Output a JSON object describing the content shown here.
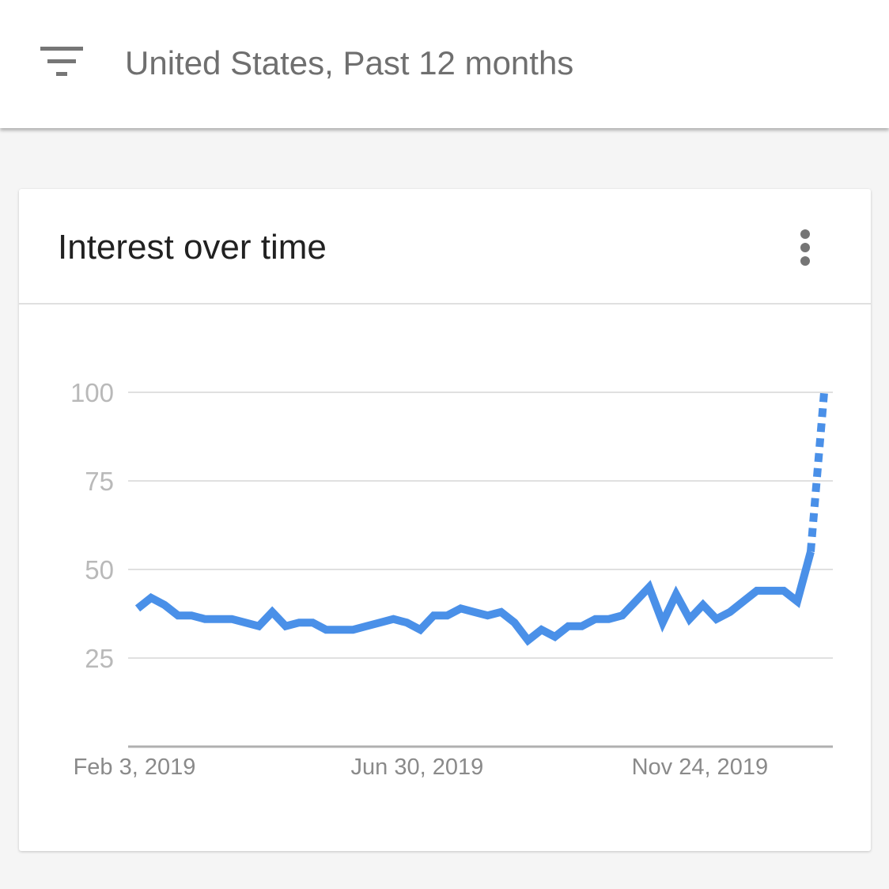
{
  "header": {
    "filter_icon": "filter-list-icon",
    "filter_text": "United States, Past 12 months"
  },
  "card": {
    "title": "Interest over time",
    "menu_icon": "more-vert-icon"
  },
  "colors": {
    "series": "#4a90e8",
    "grid": "#e0e0e0",
    "axis": "#b0b0b0"
  },
  "chart_data": {
    "type": "line",
    "title": "",
    "xlabel": "",
    "ylabel": "",
    "ylim": [
      0,
      100
    ],
    "yticks": [
      25,
      50,
      75,
      100
    ],
    "xtick_labels": [
      "Feb 3, 2019",
      "Jun 30, 2019",
      "Nov 24, 2019"
    ],
    "xtick_indices": [
      0,
      21,
      42
    ],
    "grid": true,
    "legend": "none",
    "partial_from_index": 51,
    "series": [
      {
        "values": [
          39,
          42,
          40,
          37,
          37,
          36,
          36,
          36,
          35,
          34,
          38,
          34,
          35,
          35,
          33,
          33,
          33,
          34,
          35,
          36,
          35,
          33,
          37,
          37,
          39,
          38,
          37,
          38,
          35,
          30,
          33,
          31,
          34,
          34,
          36,
          36,
          37,
          41,
          45,
          35,
          43,
          36,
          40,
          36,
          38,
          41,
          44,
          44,
          44,
          41,
          55,
          100
        ]
      }
    ]
  }
}
